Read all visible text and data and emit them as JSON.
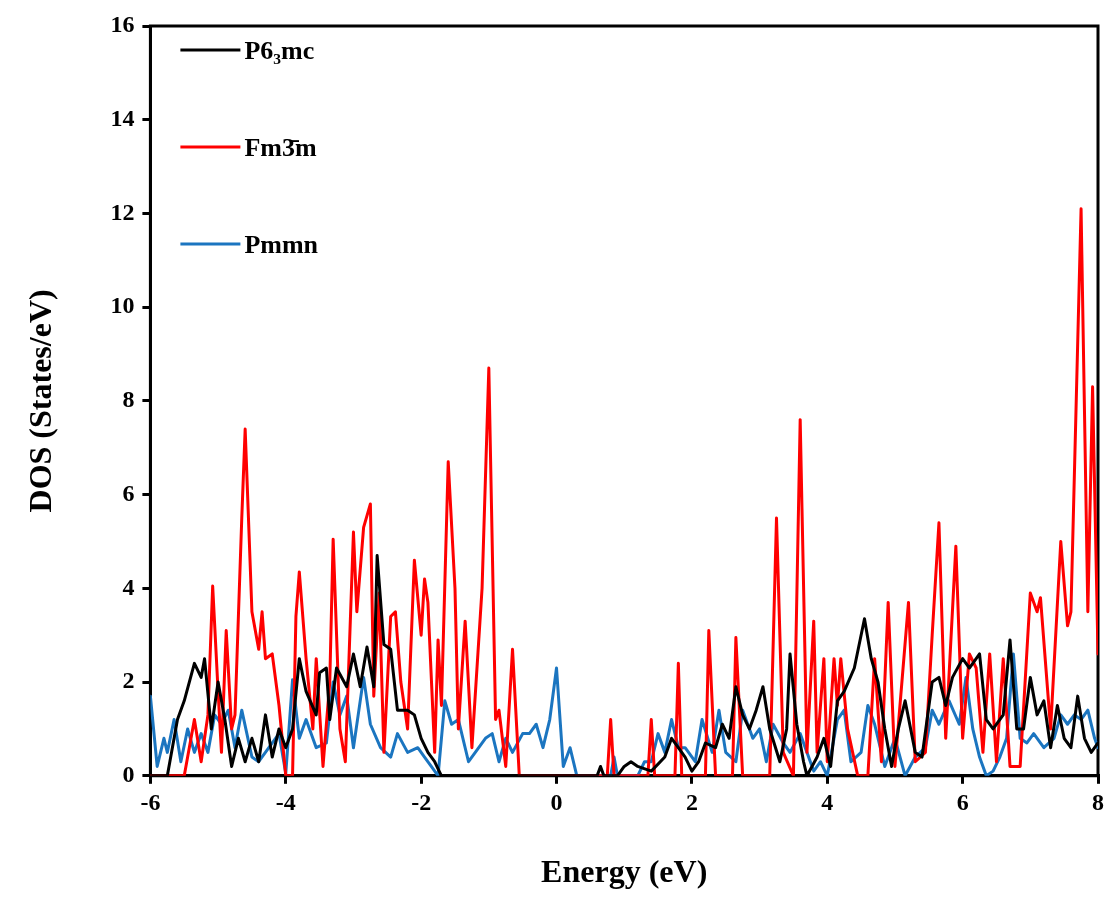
{
  "chart_data": {
    "type": "line",
    "xlabel": "Energy (eV)",
    "ylabel": "DOS (States/eV)",
    "xlim": [
      -6,
      8
    ],
    "xticks": [
      -6,
      -4,
      -2,
      0,
      2,
      4,
      6,
      8
    ],
    "ylim": [
      0,
      16
    ],
    "yticks": [
      0,
      2,
      4,
      6,
      8,
      10,
      12,
      14,
      16
    ],
    "grid": false,
    "legend": "top left",
    "series": [
      {
        "name": "P6₃mc",
        "color": "#000000",
        "x": [
          -6,
          -5.75,
          -5.6,
          -5.5,
          -5.35,
          -5.25,
          -5.2,
          -5.1,
          -5.0,
          -4.9,
          -4.8,
          -4.7,
          -4.6,
          -4.5,
          -4.4,
          -4.3,
          -4.2,
          -4.1,
          -4.0,
          -3.9,
          -3.8,
          -3.7,
          -3.55,
          -3.5,
          -3.4,
          -3.35,
          -3.25,
          -3.1,
          -3.0,
          -2.9,
          -2.8,
          -2.7,
          -2.65,
          -2.55,
          -2.45,
          -2.35,
          -2.2,
          -2.1,
          -2.0,
          -1.9,
          -1.8,
          -1.7,
          0.6,
          0.65,
          0.7,
          0.9,
          1.0,
          1.1,
          1.2,
          1.4,
          1.6,
          1.7,
          1.8,
          1.9,
          2.0,
          2.1,
          2.2,
          2.35,
          2.45,
          2.55,
          2.65,
          2.75,
          2.85,
          2.95,
          3.05,
          3.15,
          3.3,
          3.4,
          3.45,
          3.55,
          3.65,
          3.7,
          3.85,
          3.95,
          4.05,
          4.15,
          4.25,
          4.4,
          4.55,
          4.65,
          4.75,
          4.85,
          4.95,
          5.05,
          5.15,
          5.3,
          5.4,
          5.55,
          5.65,
          5.75,
          5.85,
          6.0,
          6.1,
          6.25,
          6.35,
          6.45,
          6.6,
          6.7,
          6.8,
          6.9,
          7.0,
          7.1,
          7.2,
          7.3,
          7.4,
          7.5,
          7.6,
          7.7,
          7.8,
          7.9,
          8.0
        ],
        "values": [
          0,
          0,
          1.2,
          1.6,
          2.4,
          2.1,
          2.5,
          1.0,
          2.0,
          1.2,
          0.2,
          0.8,
          0.3,
          0.8,
          0.3,
          1.3,
          0.4,
          1.0,
          0.6,
          1.0,
          2.5,
          1.8,
          1.3,
          2.2,
          2.3,
          1.2,
          2.3,
          1.9,
          2.6,
          1.9,
          2.75,
          1.9,
          4.7,
          2.8,
          2.7,
          1.4,
          1.4,
          1.3,
          0.8,
          0.5,
          0.3,
          0,
          0,
          0.2,
          0,
          0,
          0.2,
          0.3,
          0.2,
          0.1,
          0.4,
          0.8,
          0.6,
          0.4,
          0.1,
          0.3,
          0.7,
          0.6,
          1.1,
          0.8,
          1.9,
          1.3,
          1.0,
          1.4,
          1.9,
          1.0,
          0.3,
          1.0,
          2.6,
          1.1,
          0.3,
          0,
          0.4,
          0.8,
          0.2,
          1.6,
          1.8,
          2.3,
          3.35,
          2.5,
          2.0,
          1.0,
          0.2,
          1.0,
          1.6,
          0.5,
          0.4,
          2.0,
          2.1,
          1.5,
          2.1,
          2.5,
          2.3,
          2.6,
          1.2,
          1.0,
          1.3,
          2.9,
          1.0,
          1.0,
          2.1,
          1.3,
          1.6,
          0.6,
          1.5,
          0.8,
          0.6,
          1.7,
          0.8,
          0.5,
          0.7
        ]
      },
      {
        "name": "Fm3̄m",
        "color": "#ff0000",
        "x": [
          -6,
          -5.5,
          -5.35,
          -5.25,
          -5.15,
          -5.08,
          -5.0,
          -4.95,
          -4.88,
          -4.8,
          -4.75,
          -4.65,
          -4.6,
          -4.5,
          -4.4,
          -4.35,
          -4.3,
          -4.2,
          -4.1,
          -4.0,
          -3.9,
          -3.85,
          -3.8,
          -3.7,
          -3.6,
          -3.55,
          -3.45,
          -3.35,
          -3.3,
          -3.2,
          -3.12,
          -3.0,
          -2.95,
          -2.85,
          -2.75,
          -2.7,
          -2.62,
          -2.55,
          -2.45,
          -2.38,
          -2.3,
          -2.2,
          -2.1,
          -2.0,
          -1.95,
          -1.9,
          -1.8,
          -1.75,
          -1.7,
          -1.6,
          -1.5,
          -1.45,
          -1.35,
          -1.25,
          -1.1,
          -1.0,
          -0.9,
          -0.85,
          -0.75,
          -0.65,
          -0.55,
          0.75,
          0.8,
          0.85,
          1.35,
          1.4,
          1.45,
          1.75,
          1.8,
          1.85,
          2.2,
          2.25,
          2.35,
          2.6,
          2.65,
          2.75,
          3.15,
          3.25,
          3.35,
          3.5,
          3.6,
          3.7,
          3.8,
          3.85,
          3.95,
          4.0,
          4.1,
          4.15,
          4.2,
          4.3,
          4.45,
          4.6,
          4.7,
          4.8,
          4.9,
          5.0,
          5.2,
          5.3,
          5.45,
          5.55,
          5.65,
          5.75,
          5.9,
          6.0,
          6.1,
          6.2,
          6.3,
          6.4,
          6.5,
          6.6,
          6.7,
          6.85,
          7.0,
          7.1,
          7.15,
          7.3,
          7.45,
          7.55,
          7.6,
          7.75,
          7.85,
          7.92,
          8.0
        ],
        "values": [
          0,
          0,
          1.2,
          0.3,
          1.3,
          4.05,
          1.8,
          0.5,
          3.1,
          1.0,
          1.3,
          5.5,
          7.4,
          3.5,
          2.7,
          3.5,
          2.5,
          2.6,
          1.5,
          0,
          0,
          3.4,
          4.35,
          2.5,
          1.0,
          2.5,
          0.2,
          2.0,
          5.05,
          1.0,
          0.3,
          5.2,
          3.5,
          5.3,
          5.8,
          1.7,
          3.9,
          0.5,
          3.4,
          3.5,
          2.0,
          1.0,
          4.6,
          3.0,
          4.2,
          3.7,
          0.5,
          2.9,
          1.5,
          6.7,
          4.0,
          1.0,
          3.3,
          0.6,
          4.0,
          8.7,
          1.2,
          1.4,
          0.2,
          2.7,
          0,
          0,
          1.2,
          0,
          0,
          1.2,
          0,
          0,
          2.4,
          0,
          0,
          3.1,
          0,
          0,
          2.95,
          0,
          0,
          5.5,
          0.5,
          0,
          7.6,
          0.5,
          3.3,
          0.5,
          2.5,
          0.3,
          2.5,
          1.5,
          2.5,
          1.0,
          0,
          0,
          2.5,
          0.3,
          3.7,
          0.2,
          3.7,
          0.3,
          0.5,
          3.0,
          5.4,
          0.8,
          4.9,
          0.8,
          2.6,
          2.3,
          0.5,
          2.6,
          0.3,
          2.5,
          0.2,
          0.2,
          3.9,
          3.5,
          3.8,
          1.0,
          5.0,
          3.2,
          3.5,
          12.1,
          3.5,
          8.3,
          2.6
        ]
      },
      {
        "name": "Pmmn",
        "color": "#1b75c0",
        "x": [
          -6,
          -5.9,
          -5.8,
          -5.75,
          -5.65,
          -5.55,
          -5.45,
          -5.35,
          -5.25,
          -5.15,
          -5.05,
          -4.95,
          -4.85,
          -4.75,
          -4.65,
          -4.5,
          -4.4,
          -4.25,
          -4.1,
          -4.0,
          -3.9,
          -3.8,
          -3.7,
          -3.55,
          -3.4,
          -3.3,
          -3.2,
          -3.1,
          -3.0,
          -2.85,
          -2.75,
          -2.6,
          -2.45,
          -2.35,
          -2.2,
          -2.05,
          -1.95,
          -1.85,
          -1.75,
          -1.65,
          -1.55,
          -1.45,
          -1.3,
          -1.2,
          -1.05,
          -0.95,
          -0.85,
          -0.75,
          -0.65,
          -0.5,
          -0.4,
          -0.3,
          -0.2,
          -0.1,
          0.0,
          0.1,
          0.2,
          0.3,
          0.8,
          0.85,
          0.9,
          1.2,
          1.3,
          1.4,
          1.5,
          1.6,
          1.7,
          1.8,
          1.9,
          2.05,
          2.15,
          2.3,
          2.4,
          2.5,
          2.65,
          2.75,
          2.9,
          3.0,
          3.1,
          3.2,
          3.35,
          3.45,
          3.6,
          3.8,
          3.9,
          4.0,
          4.15,
          4.25,
          4.35,
          4.5,
          4.6,
          4.7,
          4.85,
          5.0,
          5.15,
          5.3,
          5.45,
          5.55,
          5.65,
          5.8,
          5.95,
          6.05,
          6.15,
          6.25,
          6.35,
          6.45,
          6.55,
          6.65,
          6.75,
          6.85,
          6.95,
          7.05,
          7.2,
          7.35,
          7.45,
          7.55,
          7.65,
          7.75,
          7.85,
          7.95,
          8.0
        ],
        "values": [
          1.7,
          0.2,
          0.8,
          0.5,
          1.2,
          0.3,
          1.0,
          0.5,
          0.9,
          0.5,
          1.3,
          1.1,
          1.4,
          0.6,
          1.4,
          0.4,
          0.3,
          0.6,
          0.9,
          0.05,
          2.05,
          0.8,
          1.2,
          0.6,
          0.7,
          2.0,
          1.3,
          1.7,
          0.6,
          2.1,
          1.1,
          0.6,
          0.4,
          0.9,
          0.5,
          0.6,
          0.4,
          0.2,
          0,
          1.6,
          1.1,
          1.2,
          0.3,
          0.5,
          0.8,
          0.9,
          0.3,
          0.8,
          0.5,
          0.9,
          0.9,
          1.1,
          0.6,
          1.2,
          2.3,
          0.2,
          0.6,
          0,
          0,
          0.4,
          0,
          0,
          0.3,
          0.3,
          0.9,
          0.5,
          1.2,
          0.6,
          0.6,
          0.3,
          1.2,
          0.5,
          1.4,
          0.5,
          0.3,
          1.4,
          0.8,
          1.0,
          0.3,
          1.1,
          0.7,
          0.5,
          0.9,
          0.1,
          0.3,
          0,
          1.2,
          1.4,
          0.3,
          0.5,
          1.5,
          1.1,
          0.2,
          0.8,
          0,
          0.4,
          0.6,
          1.4,
          1.1,
          1.6,
          1.1,
          2.1,
          1.0,
          0.4,
          0,
          0.1,
          0.4,
          0.8,
          2.6,
          0.8,
          0.7,
          0.9,
          0.6,
          0.8,
          1.3,
          1.1,
          1.3,
          1.2,
          1.4,
          0.8,
          0.6
        ]
      }
    ]
  }
}
